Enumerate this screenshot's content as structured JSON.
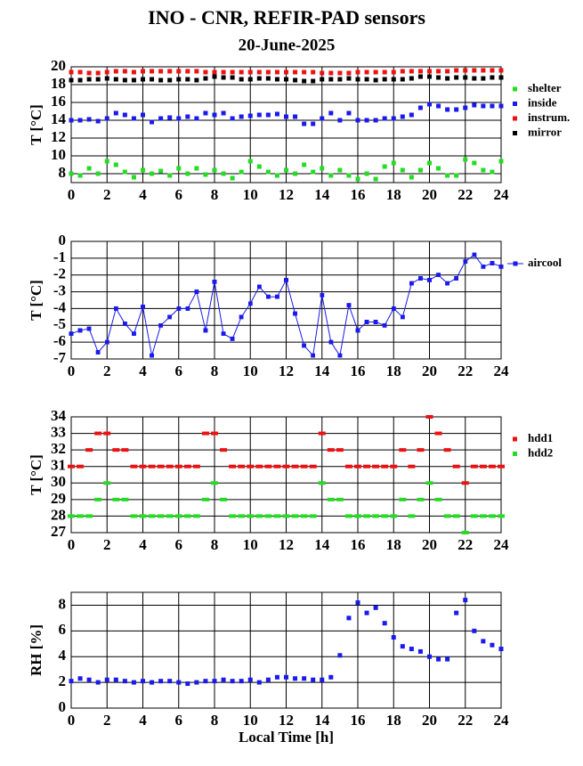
{
  "title": "INO - CNR, REFIR-PAD sensors",
  "subtitle": "20-June-2025",
  "chart_data": [
    {
      "type": "scatter",
      "marker": "square",
      "ylabel": "T [°C]",
      "x": [
        0,
        0.5,
        1,
        1.5,
        2,
        2.5,
        3,
        3.5,
        4,
        4.5,
        5,
        5.5,
        6,
        6.5,
        7,
        7.5,
        8,
        8.5,
        9,
        9.5,
        10,
        10.5,
        11,
        11.5,
        12,
        12.5,
        13,
        13.5,
        14,
        14.5,
        15,
        15.5,
        16,
        16.5,
        17,
        17.5,
        18,
        18.5,
        19,
        19.5,
        20,
        20.5,
        21,
        21.5,
        22,
        22.5,
        23,
        23.5,
        24
      ],
      "xlim": [
        0,
        24
      ],
      "xticks": [
        0,
        2,
        4,
        6,
        8,
        10,
        12,
        14,
        16,
        18,
        20,
        22,
        24
      ],
      "ylim": [
        7,
        20
      ],
      "yticks": [
        8,
        10,
        12,
        14,
        16,
        18,
        20
      ],
      "grid": true,
      "series": [
        {
          "name": "shelter",
          "color": "#22dd22",
          "values": [
            8,
            7.8,
            8.6,
            8.0,
            9.4,
            9.0,
            8.2,
            7.6,
            8.4,
            8.0,
            8.3,
            7.8,
            8.6,
            8.0,
            8.6,
            7.9,
            8.4,
            8.0,
            7.5,
            8.2,
            9.4,
            8.8,
            8.2,
            7.8,
            8.4,
            8.0,
            9.0,
            8.2,
            8.6,
            7.8,
            8.4,
            7.8,
            7.4,
            8.0,
            7.4,
            8.8,
            9.2,
            8.4,
            7.6,
            8.4,
            9.2,
            8.6,
            7.8,
            7.8,
            9.6,
            9.2,
            8.4,
            8.2,
            9.4
          ]
        },
        {
          "name": "inside",
          "color": "#1a1aee",
          "values": [
            14,
            14,
            14.1,
            13.9,
            14.2,
            14.8,
            14.6,
            14.2,
            14.6,
            13.8,
            14.2,
            14.3,
            14.2,
            14.4,
            14.2,
            14.8,
            14.6,
            14.8,
            14.2,
            14.4,
            14.5,
            14.6,
            14.6,
            14.7,
            14.4,
            14.4,
            13.6,
            13.6,
            14.2,
            14.8,
            14.0,
            14.8,
            14.0,
            14.0,
            14.0,
            14.2,
            14.2,
            14.4,
            14.6,
            15.4,
            15.8,
            15.6,
            15.2,
            15.2,
            15.4,
            15.7,
            15.6,
            15.6,
            15.6
          ]
        },
        {
          "name": "instrum.",
          "color": "#ee1111",
          "values": [
            19.4,
            19.4,
            19.3,
            19.3,
            19.4,
            19.5,
            19.5,
            19.4,
            19.5,
            19.5,
            19.5,
            19.5,
            19.5,
            19.5,
            19.5,
            19.4,
            19.4,
            19.4,
            19.4,
            19.4,
            19.4,
            19.4,
            19.4,
            19.4,
            19.4,
            19.4,
            19.4,
            19.4,
            19.3,
            19.3,
            19.3,
            19.3,
            19.4,
            19.4,
            19.4,
            19.4,
            19.4,
            19.5,
            19.5,
            19.5,
            19.5,
            19.5,
            19.5,
            19.6,
            19.6,
            19.6,
            19.6,
            19.6,
            19.6
          ]
        },
        {
          "name": "mirror",
          "color": "#000000",
          "values": [
            18.5,
            18.5,
            18.6,
            18.6,
            18.7,
            18.6,
            18.5,
            18.5,
            18.6,
            18.6,
            18.5,
            18.5,
            18.6,
            18.6,
            18.5,
            18.7,
            18.9,
            18.8,
            18.8,
            18.6,
            18.6,
            18.7,
            18.7,
            18.6,
            18.6,
            18.5,
            18.4,
            18.4,
            18.6,
            18.6,
            18.6,
            18.7,
            18.6,
            18.6,
            18.5,
            18.6,
            18.6,
            18.6,
            18.7,
            18.9,
            18.9,
            18.8,
            18.7,
            18.8,
            18.8,
            18.7,
            18.7,
            18.8,
            18.8
          ]
        }
      ]
    },
    {
      "type": "line",
      "marker": "square",
      "ylabel": "T [°C]",
      "x": [
        0,
        0.5,
        1,
        1.5,
        2,
        2.5,
        3,
        3.5,
        4,
        4.5,
        5,
        5.5,
        6,
        6.5,
        7,
        7.5,
        8,
        8.5,
        9,
        9.5,
        10,
        10.5,
        11,
        11.5,
        12,
        12.5,
        13,
        13.5,
        14,
        14.5,
        15,
        15.5,
        16,
        16.5,
        17,
        17.5,
        18,
        18.5,
        19,
        19.5,
        20,
        20.5,
        21,
        21.5,
        22,
        22.5,
        23,
        23.5,
        24
      ],
      "xlim": [
        0,
        24
      ],
      "xticks": [
        0,
        2,
        4,
        6,
        8,
        10,
        12,
        14,
        16,
        18,
        20,
        22,
        24
      ],
      "ylim": [
        -7,
        0
      ],
      "yticks": [
        -7,
        -6,
        -5,
        -4,
        -3,
        -2,
        -1,
        0
      ],
      "grid": true,
      "series": [
        {
          "name": "aircool",
          "color": "#1a1aee",
          "values": [
            -5.5,
            -5.3,
            -5.2,
            -6.6,
            -6.0,
            -4.0,
            -4.9,
            -5.5,
            -3.9,
            -6.8,
            -5.0,
            -4.5,
            -4.0,
            -4.0,
            -3.0,
            -5.3,
            -2.4,
            -5.5,
            -5.8,
            -4.5,
            -3.7,
            -2.7,
            -3.3,
            -3.3,
            -2.3,
            -4.3,
            -6.2,
            -6.8,
            -3.2,
            -6.0,
            -6.8,
            -3.8,
            -5.3,
            -4.8,
            -4.8,
            -5.0,
            -4.0,
            -4.5,
            -2.5,
            -2.2,
            -2.3,
            -2.0,
            -2.5,
            -2.2,
            -1.2,
            -0.8,
            -1.5,
            -1.3,
            -1.5
          ]
        }
      ]
    },
    {
      "type": "scatter",
      "marker": "dash",
      "ylabel": "T [°C]",
      "x": [
        0,
        0.5,
        1,
        1.5,
        2,
        2.5,
        3,
        3.5,
        4,
        4.5,
        5,
        5.5,
        6,
        6.5,
        7,
        7.5,
        8,
        8.5,
        9,
        9.5,
        10,
        10.5,
        11,
        11.5,
        12,
        12.5,
        13,
        13.5,
        14,
        14.5,
        15,
        15.5,
        16,
        16.5,
        17,
        17.5,
        18,
        18.5,
        19,
        19.5,
        20,
        20.5,
        21,
        21.5,
        22,
        22.5,
        23,
        23.5,
        24
      ],
      "xlim": [
        0,
        24
      ],
      "xticks": [
        0,
        2,
        4,
        6,
        8,
        10,
        12,
        14,
        16,
        18,
        20,
        22,
        24
      ],
      "ylim": [
        27,
        34
      ],
      "yticks": [
        27,
        28,
        29,
        30,
        31,
        32,
        33,
        34
      ],
      "grid": true,
      "series": [
        {
          "name": "hdd1",
          "color": "#ee1111",
          "values": [
            31,
            31,
            32,
            33,
            33,
            32,
            32,
            31,
            31,
            31,
            31,
            31,
            31,
            31,
            31,
            33,
            33,
            32,
            31,
            31,
            31,
            31,
            31,
            31,
            31,
            31,
            31,
            31,
            33,
            32,
            32,
            31,
            31,
            31,
            31,
            31,
            31,
            32,
            31,
            32,
            34,
            33,
            32,
            31,
            30,
            31,
            31,
            31,
            31
          ]
        },
        {
          "name": "hdd2",
          "color": "#22dd22",
          "values": [
            28,
            28,
            28,
            29,
            30,
            29,
            29,
            28,
            28,
            28,
            28,
            28,
            28,
            28,
            28,
            29,
            30,
            29,
            28,
            28,
            28,
            28,
            28,
            28,
            28,
            28,
            28,
            28,
            30,
            29,
            29,
            28,
            28,
            28,
            28,
            28,
            28,
            29,
            28,
            29,
            30,
            29,
            28,
            28,
            27,
            28,
            28,
            28,
            28
          ]
        }
      ]
    },
    {
      "type": "scatter",
      "marker": "square",
      "ylabel": "RH [%]",
      "xlabel": "Local Time [h]",
      "color": "#1a1aee",
      "x": [
        0,
        0.5,
        1,
        1.5,
        2,
        2.5,
        3,
        3.5,
        4,
        4.5,
        5,
        5.5,
        6,
        6.5,
        7,
        7.5,
        8,
        8.5,
        9,
        9.5,
        10,
        10.5,
        11,
        11.5,
        12,
        12.5,
        13,
        13.5,
        14,
        14.5,
        15,
        15.5,
        16,
        16.5,
        17,
        17.5,
        18,
        18.5,
        19,
        19.5,
        20,
        20.5,
        21,
        21.5,
        22,
        22.5,
        23,
        23.5,
        24
      ],
      "xlim": [
        0,
        24
      ],
      "xticks": [
        0,
        2,
        4,
        6,
        8,
        10,
        12,
        14,
        16,
        18,
        20,
        22,
        24
      ],
      "ylim": [
        0,
        9
      ],
      "yticks": [
        0,
        2,
        4,
        6,
        8
      ],
      "grid": true,
      "values": [
        2.1,
        2.3,
        2.2,
        2.0,
        2.2,
        2.2,
        2.1,
        2.0,
        2.1,
        2.0,
        2.1,
        2.1,
        2.0,
        1.9,
        2.0,
        2.1,
        2.1,
        2.2,
        2.1,
        2.1,
        2.2,
        2.0,
        2.2,
        2.4,
        2.4,
        2.3,
        2.3,
        2.2,
        2.2,
        2.4,
        4.1,
        7.0,
        8.2,
        7.4,
        7.8,
        6.6,
        5.5,
        4.8,
        4.6,
        4.4,
        4.0,
        3.8,
        3.8,
        7.4,
        8.4,
        6.0,
        5.2,
        4.9,
        4.6
      ]
    }
  ]
}
